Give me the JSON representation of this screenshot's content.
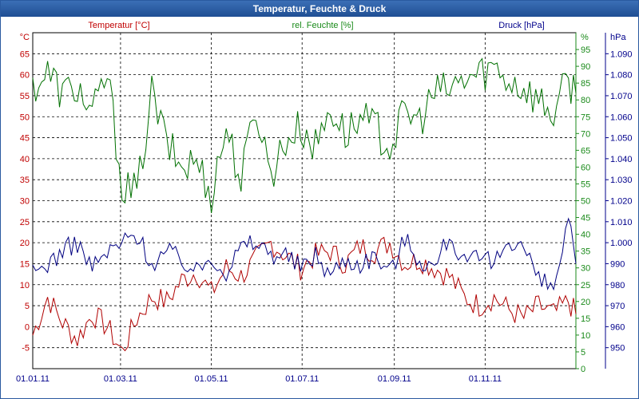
{
  "window": {
    "title": "Temperatur, Feuchte & Druck"
  },
  "chart_data": {
    "type": "line",
    "title": "Temperatur, Feuchte & Druck",
    "x_tick_labels": [
      "01.01.11",
      "01.03.11",
      "01.05.11",
      "01.07.11",
      "01.09.11",
      "01.11.11"
    ],
    "x_range_days": [
      0,
      365
    ],
    "x_tick_days": [
      0,
      59,
      120,
      181,
      243,
      304
    ],
    "grid": true,
    "axes": {
      "left": {
        "unit": "°C",
        "label": "Temperatur [°C]",
        "range": [
          -10,
          70
        ],
        "ticks": [
          -5,
          0,
          5,
          10,
          15,
          20,
          25,
          30,
          35,
          40,
          45,
          50,
          55,
          60,
          65
        ],
        "color": "#c00000"
      },
      "mid": {
        "unit": "%",
        "label": "rel. Feuchte [%]",
        "range": [
          0,
          100
        ],
        "ticks": [
          0,
          5,
          10,
          15,
          20,
          25,
          30,
          35,
          40,
          45,
          50,
          55,
          60,
          65,
          70,
          75,
          80,
          85,
          90,
          95
        ],
        "color": "#1a8a1a"
      },
      "right": {
        "unit": "hPa",
        "label": "Druck [hPa]",
        "range": [
          940,
          1100
        ],
        "ticks": [
          "950",
          "960",
          "970",
          "980",
          "990",
          "1.000",
          "1.010",
          "1.020",
          "1.030",
          "1.040",
          "1.050",
          "1.060",
          "1.070",
          "1.080",
          "1.090"
        ],
        "color": "#00008b"
      }
    },
    "series": [
      {
        "name": "Temperatur [°C]",
        "axis": "left",
        "color": "#b00000",
        "x": [
          0,
          10,
          20,
          30,
          40,
          50,
          60,
          70,
          80,
          90,
          100,
          110,
          120,
          130,
          140,
          150,
          160,
          170,
          180,
          190,
          200,
          210,
          220,
          230,
          240,
          250,
          260,
          270,
          280,
          290,
          300,
          310,
          320,
          330,
          340,
          350,
          360,
          365
        ],
        "y": [
          -2,
          7,
          1,
          -3,
          3,
          0,
          -6,
          2,
          7,
          6,
          11,
          13,
          8,
          14,
          12,
          16,
          20,
          17,
          14,
          17,
          18,
          15,
          19,
          18,
          20,
          15,
          16,
          14,
          12,
          7,
          5,
          7,
          4,
          2,
          5,
          3,
          6,
          3
        ]
      },
      {
        "name": "rel. Feuchte [%]",
        "axis": "mid",
        "color": "#007000",
        "x": [
          0,
          10,
          20,
          30,
          40,
          50,
          60,
          70,
          80,
          90,
          100,
          110,
          120,
          130,
          140,
          150,
          160,
          170,
          180,
          190,
          200,
          210,
          220,
          230,
          240,
          250,
          260,
          270,
          280,
          290,
          300,
          310,
          320,
          330,
          340,
          350,
          360,
          365
        ],
        "y": [
          84,
          88,
          82,
          84,
          75,
          88,
          55,
          52,
          82,
          67,
          60,
          62,
          52,
          72,
          56,
          78,
          58,
          68,
          72,
          66,
          78,
          70,
          74,
          72,
          66,
          76,
          74,
          82,
          83,
          86,
          88,
          90,
          86,
          84,
          80,
          76,
          86,
          82
        ]
      },
      {
        "name": "Druck [hPa]",
        "axis": "right",
        "color": "#000080",
        "x": [
          0,
          10,
          20,
          30,
          40,
          50,
          60,
          70,
          80,
          90,
          100,
          110,
          120,
          130,
          140,
          150,
          160,
          170,
          180,
          190,
          200,
          210,
          220,
          230,
          240,
          250,
          260,
          270,
          280,
          290,
          300,
          310,
          320,
          330,
          340,
          350,
          360,
          365
        ],
        "y": [
          985,
          990,
          996,
          1000,
          988,
          995,
          1000,
          1004,
          990,
          996,
          992,
          986,
          994,
          986,
          998,
          1000,
          995,
          994,
          988,
          994,
          985,
          992,
          990,
          994,
          986,
          1002,
          992,
          988,
          1004,
          990,
          992,
          990,
          1002,
          998,
          982,
          978,
          1010,
          990
        ]
      }
    ]
  }
}
